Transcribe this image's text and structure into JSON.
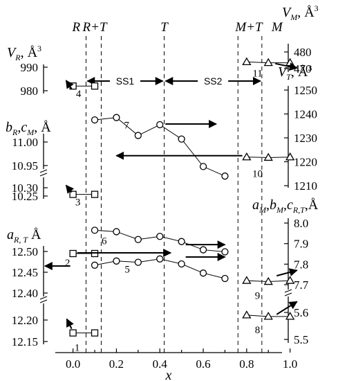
{
  "chart_data": {
    "type": "scatter",
    "xlabel": "x",
    "xlim": [
      -0.08,
      1.06
    ],
    "x_ticks": [
      "0.0",
      "0.2",
      "0.4",
      "0.6",
      "0.8",
      "1.0"
    ],
    "phase_labels": [
      "R",
      "R+T",
      "T",
      "M+T",
      "M"
    ],
    "phase_boundaries": [
      0.06,
      0.13,
      0.42,
      0.76,
      0.87
    ],
    "regions": [
      {
        "label": "SS1",
        "x_from": 0.06,
        "x_to": 0.42
      },
      {
        "label": "SS2",
        "x_from": 0.42,
        "x_to": 0.87
      }
    ],
    "y_axes": {
      "V_R": {
        "title": "V",
        "sub": "R",
        "unit": ", Å",
        "sup": "3",
        "side": "left",
        "ylim": [
          976,
          994
        ],
        "ticks": [
          "980",
          "990"
        ]
      },
      "bR_cM": {
        "title": "b",
        "sub": "R",
        "mid": ",c",
        "sub2": "M",
        "unit": ", Å",
        "side": "left",
        "break_ticks": [
          "10.25",
          "10.30",
          "10.95",
          "11.00"
        ]
      },
      "a_RT": {
        "title": "a",
        "sub": "R, T",
        "unit": " Å",
        "side": "left",
        "break_ticks": [
          "12.15",
          "12.20",
          "12.40",
          "12.45",
          "12.50"
        ]
      },
      "V_M": {
        "title": "V",
        "sub": "M",
        "unit": ", Å",
        "sup": "3",
        "side": "right",
        "ylim": [
          465,
          485
        ],
        "ticks": [
          "470",
          "480"
        ]
      },
      "V_T": {
        "title": "V",
        "sub": "T",
        "unit": ", Å",
        "sup": "3",
        "side": "right",
        "ylim": [
          1208,
          1252
        ],
        "ticks": [
          "1210",
          "1220",
          "1230",
          "1240",
          "1250"
        ]
      },
      "aM_bM_cRT": {
        "title": "a",
        "sub": "M",
        "mid": ",b",
        "sub2": "M",
        "mid2": ",c",
        "sub3": "R,T",
        "unit": ",Å",
        "side": "right",
        "break_ticks": [
          "5.5",
          "5.6",
          "7.7",
          "7.8",
          "7.9",
          "8.0"
        ]
      }
    },
    "series": [
      {
        "label": "1",
        "marker": "square",
        "axis": "a_RT",
        "x": [
          0.0,
          0.1
        ],
        "y": [
          12.17,
          12.17
        ]
      },
      {
        "label": "2",
        "marker": "square",
        "axis": "a_RT",
        "x": [
          0.0,
          0.1
        ],
        "y": [
          12.495,
          12.495
        ]
      },
      {
        "label": "3",
        "marker": "square",
        "axis": "bR_cM",
        "x": [
          0.0,
          0.1
        ],
        "y": [
          10.26,
          10.26
        ]
      },
      {
        "label": "4",
        "marker": "square",
        "axis": "V_R",
        "x": [
          0.0,
          0.1
        ],
        "y": [
          982,
          982
        ]
      },
      {
        "label": "5",
        "marker": "circle",
        "axis": "a_RT",
        "x": [
          0.1,
          0.2,
          0.3,
          0.4,
          0.5,
          0.6,
          0.7
        ],
        "y": [
          12.467,
          12.477,
          12.474,
          12.482,
          12.47,
          12.448,
          12.435
        ]
      },
      {
        "label": "6",
        "marker": "circle",
        "axis": "aM_bM_cRT",
        "x": [
          0.1,
          0.2,
          0.3,
          0.4,
          0.5,
          0.6,
          0.7
        ],
        "y": [
          7.965,
          7.958,
          7.92,
          7.935,
          7.91,
          7.87,
          7.86
        ]
      },
      {
        "label": "7",
        "marker": "circle",
        "axis": "V_T",
        "x": [
          0.1,
          0.2,
          0.3,
          0.4,
          0.5,
          0.6,
          0.7
        ],
        "y": [
          1237.5,
          1238.5,
          1231.0,
          1235.5,
          1229.5,
          1218.0,
          1214.0
        ]
      },
      {
        "label": "8",
        "marker": "triangle",
        "axis": "aM_bM_cRT",
        "x": [
          0.8,
          0.9,
          1.0
        ],
        "y": [
          5.59,
          5.585,
          5.585
        ]
      },
      {
        "label": "9",
        "marker": "triangle",
        "axis": "aM_bM_cRT",
        "x": [
          0.8,
          0.9,
          1.0
        ],
        "y": [
          7.72,
          7.715,
          7.72
        ]
      },
      {
        "label": "10",
        "marker": "triangle",
        "axis": "bR_cM",
        "x": [
          0.8,
          0.9,
          1.0
        ],
        "y": [
          10.968,
          10.967,
          10.968
        ]
      },
      {
        "label": "11",
        "marker": "triangle",
        "axis": "V_M",
        "x": [
          0.8,
          0.9,
          1.0
        ],
        "y": [
          474,
          473.5,
          473.5
        ]
      }
    ]
  }
}
